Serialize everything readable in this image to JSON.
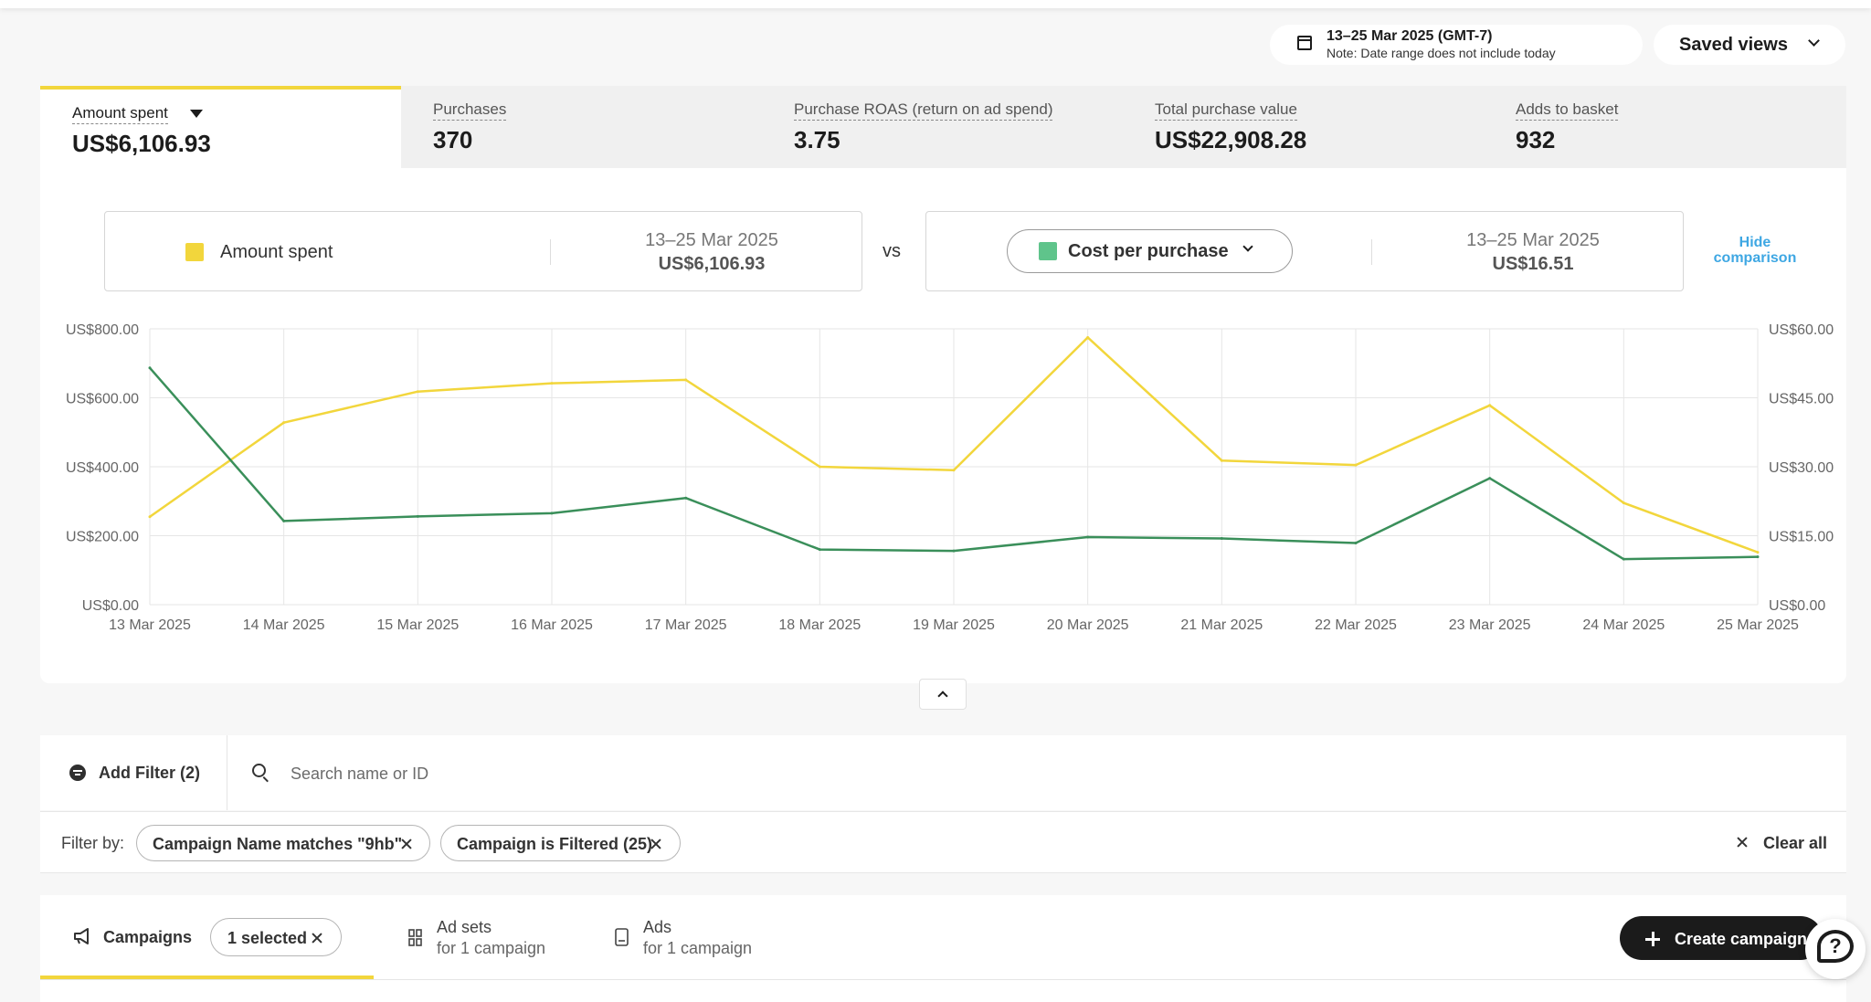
{
  "header": {
    "date_range": "13–25 Mar 2025 (GMT-7)",
    "date_note": "Note: Date range does not include today",
    "saved_views": "Saved views"
  },
  "metrics": [
    {
      "label": "Amount spent",
      "value": "US$6,106.93",
      "active": true
    },
    {
      "label": "Purchases",
      "value": "370"
    },
    {
      "label": "Purchase ROAS (return on ad spend)",
      "value": "3.75"
    },
    {
      "label": "Total purchase value",
      "value": "US$22,908.28"
    },
    {
      "label": "Adds to basket",
      "value": "932"
    }
  ],
  "comparison": {
    "left": {
      "name": "Amount spent",
      "date": "13–25 Mar 2025",
      "value": "US$6,106.93",
      "color": "#f2d63c"
    },
    "vs": "vs",
    "right": {
      "name": "Cost per purchase",
      "date": "13–25 Mar 2025",
      "value": "US$16.51",
      "color": "#5fc48b"
    },
    "hide_label": "Hide comparison"
  },
  "chart_data": {
    "type": "line",
    "x": [
      "13 Mar 2025",
      "14 Mar 2025",
      "15 Mar 2025",
      "16 Mar 2025",
      "17 Mar 2025",
      "18 Mar 2025",
      "19 Mar 2025",
      "20 Mar 2025",
      "21 Mar 2025",
      "22 Mar 2025",
      "23 Mar 2025",
      "24 Mar 2025",
      "25 Mar 2025"
    ],
    "y_left_ticks": [
      "US$0.00",
      "US$200.00",
      "US$400.00",
      "US$600.00",
      "US$800.00"
    ],
    "y_right_ticks": [
      "US$0.00",
      "US$15.00",
      "US$30.00",
      "US$45.00",
      "US$60.00"
    ],
    "ylim_left": [
      0,
      800
    ],
    "ylim_right": [
      0,
      60
    ],
    "series": [
      {
        "name": "Amount spent",
        "axis": "left",
        "color": "#f2d63c",
        "values": [
          255,
          528,
          618,
          642,
          652,
          400,
          390,
          775,
          418,
          405,
          578,
          295,
          152
        ]
      },
      {
        "name": "Cost per purchase",
        "axis": "right",
        "color": "#3a8f5a",
        "values": [
          51.5,
          18.2,
          19.2,
          19.9,
          23.2,
          12.0,
          11.7,
          14.7,
          14.4,
          13.4,
          27.5,
          9.9,
          10.4
        ]
      }
    ],
    "grid": true
  },
  "filters": {
    "add_filter": "Add Filter (2)",
    "search_placeholder": "Search name or ID",
    "filter_by": "Filter by:",
    "chips": [
      "Campaign Name matches \"9hb\"",
      "Campaign is Filtered (25)"
    ],
    "clear_all": "Clear all"
  },
  "tabs": {
    "campaigns": "Campaigns",
    "selected": "1 selected",
    "adsets": "Ad sets",
    "adsets_sub": "for 1 campaign",
    "ads": "Ads",
    "ads_sub": "for 1 campaign",
    "create": "Create campaign"
  }
}
